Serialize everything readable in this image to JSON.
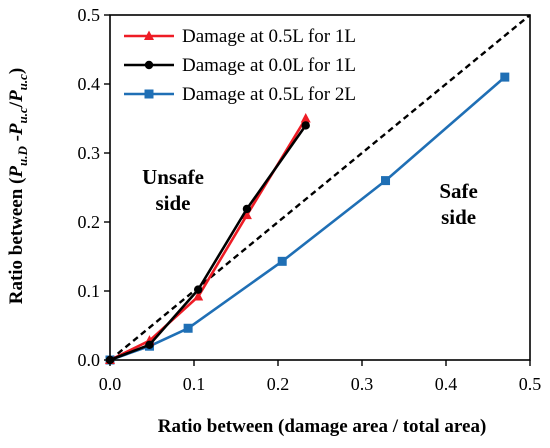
{
  "chart_data": {
    "type": "line",
    "xlabel": "Ratio between (damage area / total area)",
    "ylabel": {
      "prefix": "Ratio between (",
      "p1": "P",
      "sub1": "u.D",
      "mid": " -",
      "p2": "P",
      "sub2": "u.c",
      "slash": "/",
      "p3": "P",
      "sub3": "u.c",
      "suffix": ")"
    },
    "xlim": [
      0,
      0.5
    ],
    "ylim": [
      0,
      0.5
    ],
    "x_ticks": [
      "0.0",
      "0.1",
      "0.2",
      "0.3",
      "0.4",
      "0.5"
    ],
    "y_ticks": [
      "0.0",
      "0.1",
      "0.2",
      "0.3",
      "0.4",
      "0.5"
    ],
    "grid": false,
    "legend_position": "top-left",
    "series": [
      {
        "name": "Damage at 0.5L for 1L",
        "color": "#ee1c25",
        "marker": "triangle",
        "x": [
          0.0,
          0.047,
          0.105,
          0.163,
          0.233
        ],
        "y": [
          0.0,
          0.028,
          0.092,
          0.21,
          0.35
        ]
      },
      {
        "name": "Damage at 0.0L for 1L",
        "color": "#000000",
        "marker": "circle",
        "x": [
          0.0,
          0.047,
          0.105,
          0.163,
          0.233
        ],
        "y": [
          0.0,
          0.022,
          0.102,
          0.219,
          0.34
        ]
      },
      {
        "name": "Damage at 0.5L for 2L",
        "color": "#1f6fb5",
        "marker": "square",
        "x": [
          0.0,
          0.047,
          0.093,
          0.205,
          0.328,
          0.47
        ],
        "y": [
          0.0,
          0.02,
          0.046,
          0.143,
          0.26,
          0.41
        ]
      }
    ],
    "reference_line": {
      "x": [
        0,
        0.5
      ],
      "y": [
        0,
        0.5
      ],
      "style": "dashed",
      "color": "#000000"
    },
    "annotations": [
      {
        "lines": [
          "Unsafe",
          "side"
        ],
        "x": 0.075,
        "y": 0.255
      },
      {
        "lines": [
          "Safe",
          "side"
        ],
        "x": 0.415,
        "y": 0.235
      }
    ]
  }
}
